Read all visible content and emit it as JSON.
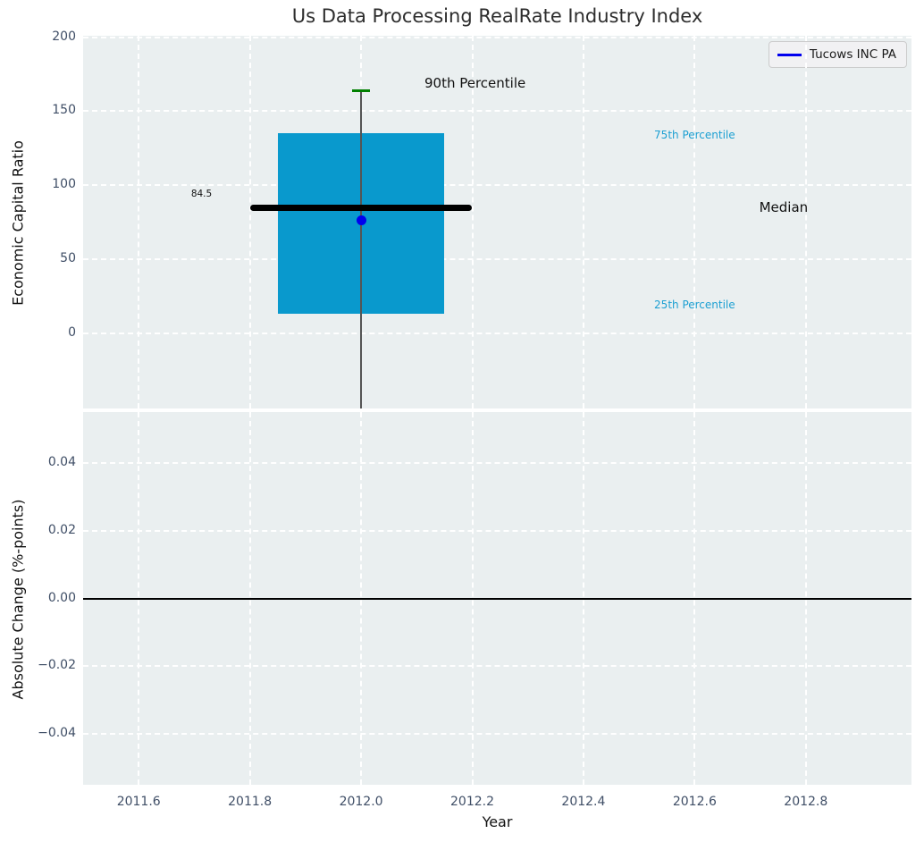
{
  "title": "Us Data Processing RealRate Industry Index",
  "legend": {
    "label": "Tucows INC PA",
    "position": "upper right"
  },
  "colors": {
    "axes_background": "#eaeff0",
    "grid": "#ffffff",
    "tick_label": "#3f4e66",
    "box_fill": "#0999cd",
    "percentile_label": "#1b9fd2",
    "median_line": "#000000",
    "whisker": "#555555",
    "cap_90th": "#008000",
    "company_point": "#0000ee",
    "legend_line": "#0000ee",
    "zero_line": "#000000",
    "annotation_dark": "#111111"
  },
  "chart_data": [
    {
      "type": "box",
      "panel": "top",
      "title": "Us Data Processing RealRate Industry Index",
      "ylabel": "Economic Capital Ratio",
      "xlim": [
        2011.5,
        2012.99
      ],
      "ylim": [
        -51,
        201
      ],
      "grid": true,
      "yticks": [
        {
          "v": 0,
          "label": "0"
        },
        {
          "v": 50,
          "label": "50"
        },
        {
          "v": 100,
          "label": "100"
        },
        {
          "v": 150,
          "label": "150"
        },
        {
          "v": 200,
          "label": "200"
        }
      ],
      "xgrid": [
        2011.6,
        2011.8,
        2012.0,
        2012.2,
        2012.4,
        2012.6,
        2012.8
      ],
      "xticks": [],
      "box": {
        "x": 2012.0,
        "box_halfwidth": 0.15,
        "q1_25th_percentile": 13,
        "median": 84.5,
        "q3_75th_percentile": 135,
        "p90_90th_percentile": 164,
        "lower_whisker": "extends below visible axis (clipped)",
        "median_halfwidth": 0.2,
        "cap_halfwidth": 0.016
      },
      "company_point": {
        "name": "Tucows INC PA",
        "x": 2012.0,
        "y": 76
      },
      "median_value_label": "84.5",
      "annotations": [
        {
          "text": "90th Percentile",
          "x": 2012.205,
          "y": 168,
          "size": 15,
          "color": "#111111"
        },
        {
          "text": "75th Percentile",
          "x": 2012.6,
          "y": 133,
          "size": 12,
          "color": "#1b9fd2"
        },
        {
          "text": "Median",
          "x": 2012.76,
          "y": 84,
          "size": 15,
          "color": "#111111"
        },
        {
          "text": "25th Percentile",
          "x": 2012.6,
          "y": 18,
          "size": 12,
          "color": "#1b9fd2"
        },
        {
          "text": "84.5",
          "x": 2011.713,
          "y": 93,
          "size": 10.5,
          "color": "#111111"
        }
      ]
    },
    {
      "type": "line",
      "panel": "bottom",
      "ylabel": "Absolute Change (%-points)",
      "xlabel": "Year",
      "xlim": [
        2011.5,
        2012.99
      ],
      "ylim": [
        -0.055,
        0.055
      ],
      "grid": true,
      "yticks": [
        {
          "v": 0.04,
          "label": "0.04"
        },
        {
          "v": 0.02,
          "label": "0.02"
        },
        {
          "v": 0.0,
          "label": "0.00"
        },
        {
          "v": -0.02,
          "label": "−0.02"
        },
        {
          "v": -0.04,
          "label": "−0.04"
        }
      ],
      "xticks": [
        {
          "v": 2011.6,
          "label": "2011.6"
        },
        {
          "v": 2011.8,
          "label": "2011.8"
        },
        {
          "v": 2012.0,
          "label": "2012.0"
        },
        {
          "v": 2012.2,
          "label": "2012.2"
        },
        {
          "v": 2012.4,
          "label": "2012.4"
        },
        {
          "v": 2012.6,
          "label": "2012.6"
        },
        {
          "v": 2012.8,
          "label": "2012.8"
        }
      ],
      "zero_line": 0.0,
      "series": []
    }
  ]
}
